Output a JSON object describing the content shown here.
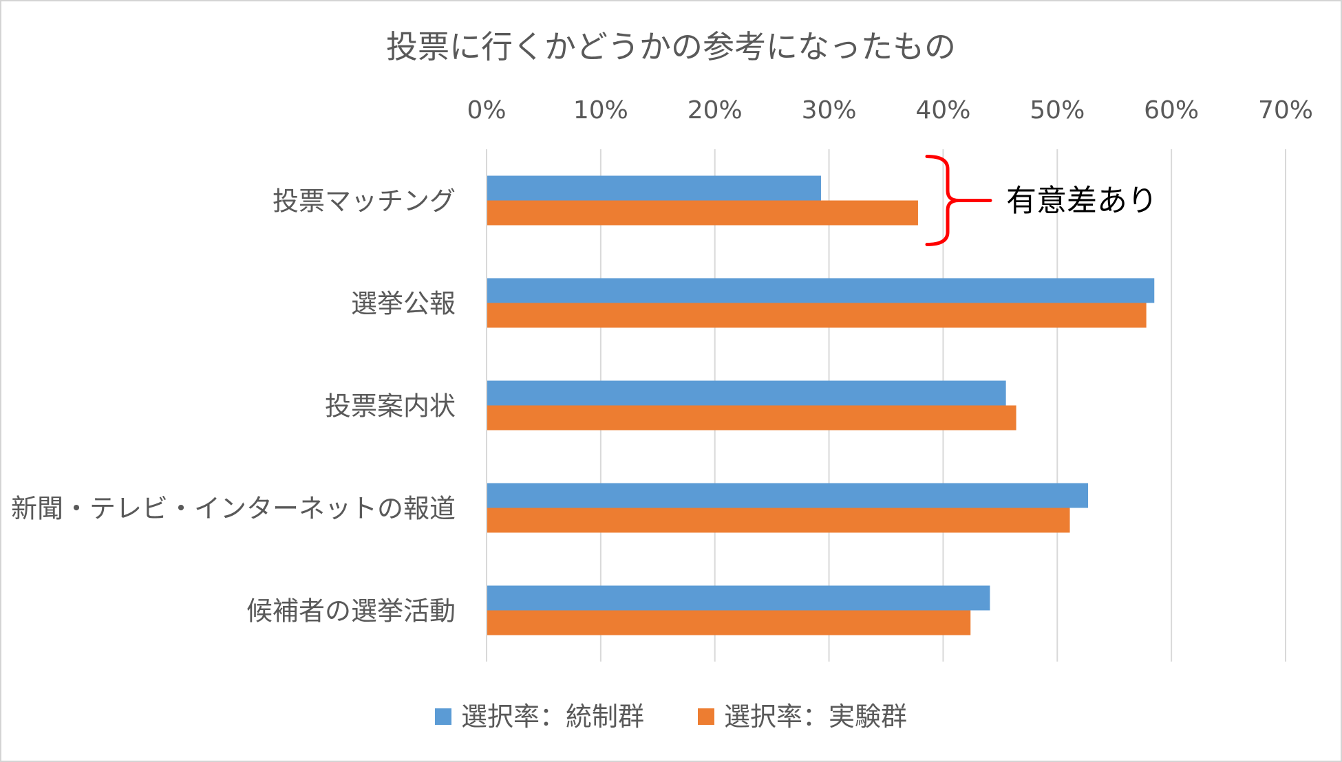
{
  "chart_data": {
    "type": "bar",
    "orientation": "horizontal",
    "title": "投票に行くかどうかの参考になったもの",
    "categories": [
      "投票マッチング",
      "選挙公報",
      "投票案内状",
      "新聞・テレビ・インターネットの報道",
      "候補者の選挙活動"
    ],
    "series": [
      {
        "name": "選択率：統制群",
        "color": "#5B9BD5",
        "values": [
          0.293,
          0.585,
          0.455,
          0.527,
          0.441
        ]
      },
      {
        "name": "選択率：実験群",
        "color": "#ED7D31",
        "values": [
          0.378,
          0.578,
          0.464,
          0.511,
          0.424
        ]
      }
    ],
    "xlim": [
      0,
      0.7
    ],
    "ticks": [
      {
        "value": 0.0,
        "label": "0%"
      },
      {
        "value": 0.1,
        "label": "10%"
      },
      {
        "value": 0.2,
        "label": "20%"
      },
      {
        "value": 0.3,
        "label": "30%"
      },
      {
        "value": 0.4,
        "label": "40%"
      },
      {
        "value": 0.5,
        "label": "50%"
      },
      {
        "value": 0.6,
        "label": "60%"
      },
      {
        "value": 0.7,
        "label": "70%"
      }
    ],
    "grid": "vertical",
    "axis_labels_position": "top",
    "legend_position": "bottom",
    "annotation": {
      "text": "有意差あり",
      "category": "投票マッチング",
      "color": "#FF0000"
    }
  }
}
